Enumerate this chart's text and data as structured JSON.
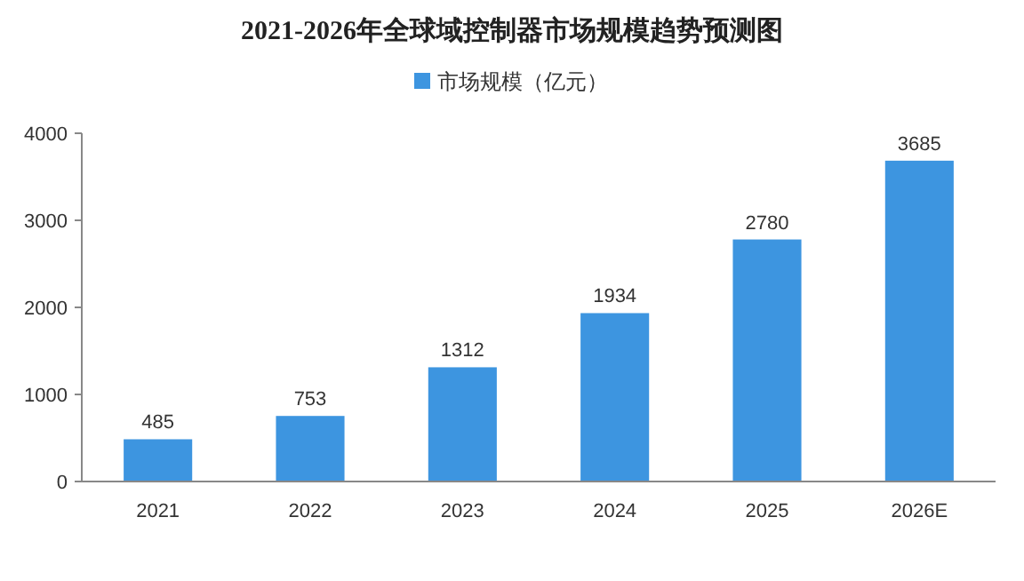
{
  "chart_data": {
    "type": "bar",
    "title": "2021-2026年全球域控制器市场规模趋势预测图",
    "categories": [
      "2021",
      "2022",
      "2023",
      "2024",
      "2025",
      "2026E"
    ],
    "series": [
      {
        "name": "市场规模（亿元）",
        "color": "#3d95e0",
        "values": [
          485,
          753,
          1312,
          1934,
          2780,
          3685
        ]
      }
    ],
    "ylim": [
      0,
      4000
    ],
    "yticks": [
      0,
      1000,
      2000,
      3000,
      4000
    ],
    "data_labels": true,
    "legend": "top"
  }
}
